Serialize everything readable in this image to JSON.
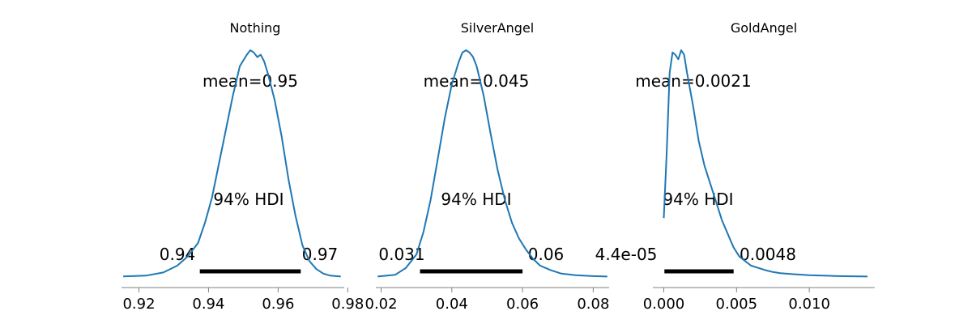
{
  "chart_data": [
    {
      "type": "line",
      "title": "Nothing",
      "mean_label": "mean=0.95",
      "hdi_label": "94% HDI",
      "hdi": {
        "low": 0.9375,
        "high": 0.9665,
        "low_label": "0.94",
        "high_label": "0.97"
      },
      "xlim": [
        0.915,
        0.979
      ],
      "ticks": [
        0.92,
        0.94,
        0.96,
        0.98
      ],
      "tick_labels": [
        "0.92",
        "0.94",
        "0.96",
        "0.98"
      ],
      "density": {
        "x": [
          0.9155,
          0.922,
          0.927,
          0.931,
          0.934,
          0.937,
          0.939,
          0.941,
          0.943,
          0.945,
          0.947,
          0.949,
          0.951,
          0.952,
          0.953,
          0.954,
          0.955,
          0.956,
          0.957,
          0.959,
          0.961,
          0.963,
          0.965,
          0.967,
          0.969,
          0.971,
          0.973,
          0.975,
          0.978
        ],
        "y": [
          0.003,
          0.006,
          0.02,
          0.05,
          0.09,
          0.15,
          0.24,
          0.35,
          0.5,
          0.65,
          0.8,
          0.93,
          0.98,
          1.0,
          0.99,
          0.97,
          0.98,
          0.95,
          0.9,
          0.78,
          0.62,
          0.43,
          0.27,
          0.14,
          0.07,
          0.035,
          0.015,
          0.006,
          0.002
        ]
      }
    },
    {
      "type": "line",
      "title": "SilverAngel",
      "mean_label": "mean=0.045",
      "hdi_label": "94% HDI",
      "hdi": {
        "low": 0.031,
        "high": 0.06,
        "low_label": "0.031",
        "high_label": "0.06"
      },
      "xlim": [
        0.0185,
        0.0845
      ],
      "ticks": [
        0.02,
        0.04,
        0.06,
        0.08
      ],
      "tick_labels": [
        "0.02",
        "0.04",
        "0.06",
        "0.08"
      ],
      "density": {
        "x": [
          0.019,
          0.024,
          0.027,
          0.03,
          0.032,
          0.034,
          0.036,
          0.038,
          0.04,
          0.042,
          0.043,
          0.044,
          0.045,
          0.046,
          0.047,
          0.049,
          0.051,
          0.053,
          0.055,
          0.057,
          0.059,
          0.061,
          0.063,
          0.065,
          0.068,
          0.071,
          0.075,
          0.08,
          0.084
        ],
        "y": [
          0.002,
          0.01,
          0.04,
          0.1,
          0.2,
          0.34,
          0.52,
          0.7,
          0.85,
          0.95,
          0.99,
          1.0,
          0.99,
          0.97,
          0.93,
          0.8,
          0.63,
          0.47,
          0.34,
          0.24,
          0.17,
          0.12,
          0.08,
          0.05,
          0.03,
          0.015,
          0.008,
          0.004,
          0.002
        ]
      }
    },
    {
      "type": "line",
      "title": "GoldAngel",
      "mean_label": "mean=0.0021",
      "hdi_label": "94% HDI",
      "hdi": {
        "low": 4.4e-05,
        "high": 0.0048,
        "low_label": "4.4e-05",
        "high_label": "0.0048"
      },
      "xlim": [
        -0.00075,
        0.0145
      ],
      "ticks": [
        0.0,
        0.005,
        0.01
      ],
      "tick_labels": [
        "0.000",
        "0.005",
        "0.010"
      ],
      "density": {
        "x": [
          0.0,
          0.0002,
          0.0004,
          0.0006,
          0.0008,
          0.001,
          0.0012,
          0.0014,
          0.0016,
          0.002,
          0.0024,
          0.0028,
          0.0032,
          0.0036,
          0.004,
          0.0044,
          0.0048,
          0.0052,
          0.0056,
          0.006,
          0.0065,
          0.007,
          0.0075,
          0.008,
          0.009,
          0.01,
          0.011,
          0.012,
          0.014
        ],
        "y": [
          0.26,
          0.55,
          0.9,
          0.99,
          0.98,
          0.96,
          1.0,
          0.98,
          0.9,
          0.76,
          0.6,
          0.49,
          0.41,
          0.33,
          0.25,
          0.19,
          0.13,
          0.09,
          0.07,
          0.05,
          0.04,
          0.03,
          0.022,
          0.017,
          0.012,
          0.008,
          0.006,
          0.004,
          0.002
        ]
      }
    }
  ]
}
